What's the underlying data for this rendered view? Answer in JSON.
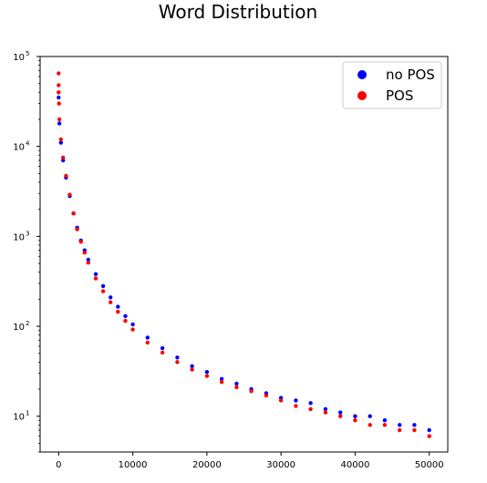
{
  "chart_data": {
    "type": "scatter",
    "title": "Word Distribution",
    "xlabel": "",
    "ylabel": "",
    "xlim": [
      -2500,
      52500
    ],
    "ylim": [
      4,
      100000
    ],
    "yscale": "log",
    "grid": false,
    "legend_position": "top-right",
    "x_ticks": [
      0,
      10000,
      20000,
      30000,
      40000,
      50000
    ],
    "x_tick_labels": [
      "0",
      "10000",
      "20000",
      "30000",
      "40000",
      "50000"
    ],
    "y_ticks": [
      10,
      100,
      1000,
      10000,
      100000
    ],
    "y_tick_bases": [
      "10",
      "10",
      "10",
      "10",
      "10"
    ],
    "y_tick_exponents": [
      "1",
      "2",
      "3",
      "4",
      "5"
    ],
    "series": [
      {
        "name": "no POS",
        "color": "#0000ff",
        "points": [
          [
            0,
            35000
          ],
          [
            100,
            18000
          ],
          [
            300,
            11000
          ],
          [
            600,
            7000
          ],
          [
            1000,
            4500
          ],
          [
            1500,
            2800
          ],
          [
            2000,
            1800
          ],
          [
            2500,
            1250
          ],
          [
            3000,
            900
          ],
          [
            3500,
            700
          ],
          [
            4000,
            550
          ],
          [
            5000,
            380
          ],
          [
            6000,
            280
          ],
          [
            7000,
            210
          ],
          [
            8000,
            165
          ],
          [
            9000,
            130
          ],
          [
            10000,
            105
          ],
          [
            12000,
            75
          ],
          [
            14000,
            57
          ],
          [
            16000,
            45
          ],
          [
            18000,
            36
          ],
          [
            20000,
            31
          ],
          [
            22000,
            26
          ],
          [
            24000,
            23
          ],
          [
            26000,
            20
          ],
          [
            28000,
            18
          ],
          [
            30000,
            16
          ],
          [
            32000,
            15
          ],
          [
            34000,
            14
          ],
          [
            36000,
            12
          ],
          [
            38000,
            11
          ],
          [
            40000,
            10
          ],
          [
            42000,
            10
          ],
          [
            44000,
            9
          ],
          [
            46000,
            8
          ],
          [
            48000,
            8
          ],
          [
            50000,
            7
          ]
        ]
      },
      {
        "name": "POS",
        "color": "#ff0000",
        "points": [
          [
            0,
            65000
          ],
          [
            0,
            48000
          ],
          [
            0,
            40000
          ],
          [
            50,
            30000
          ],
          [
            100,
            20000
          ],
          [
            300,
            12000
          ],
          [
            600,
            7500
          ],
          [
            1000,
            4700
          ],
          [
            1500,
            2900
          ],
          [
            2000,
            1800
          ],
          [
            2500,
            1200
          ],
          [
            3000,
            870
          ],
          [
            3500,
            660
          ],
          [
            4000,
            510
          ],
          [
            5000,
            340
          ],
          [
            6000,
            245
          ],
          [
            7000,
            185
          ],
          [
            8000,
            145
          ],
          [
            9000,
            115
          ],
          [
            10000,
            92
          ],
          [
            12000,
            66
          ],
          [
            14000,
            51
          ],
          [
            16000,
            40
          ],
          [
            18000,
            33
          ],
          [
            20000,
            28
          ],
          [
            22000,
            24
          ],
          [
            24000,
            21
          ],
          [
            26000,
            19
          ],
          [
            28000,
            17
          ],
          [
            30000,
            15
          ],
          [
            32000,
            13
          ],
          [
            34000,
            12
          ],
          [
            36000,
            11
          ],
          [
            38000,
            10
          ],
          [
            40000,
            9
          ],
          [
            42000,
            8
          ],
          [
            44000,
            8
          ],
          [
            46000,
            7
          ],
          [
            48000,
            7
          ],
          [
            50000,
            6
          ]
        ]
      }
    ]
  }
}
